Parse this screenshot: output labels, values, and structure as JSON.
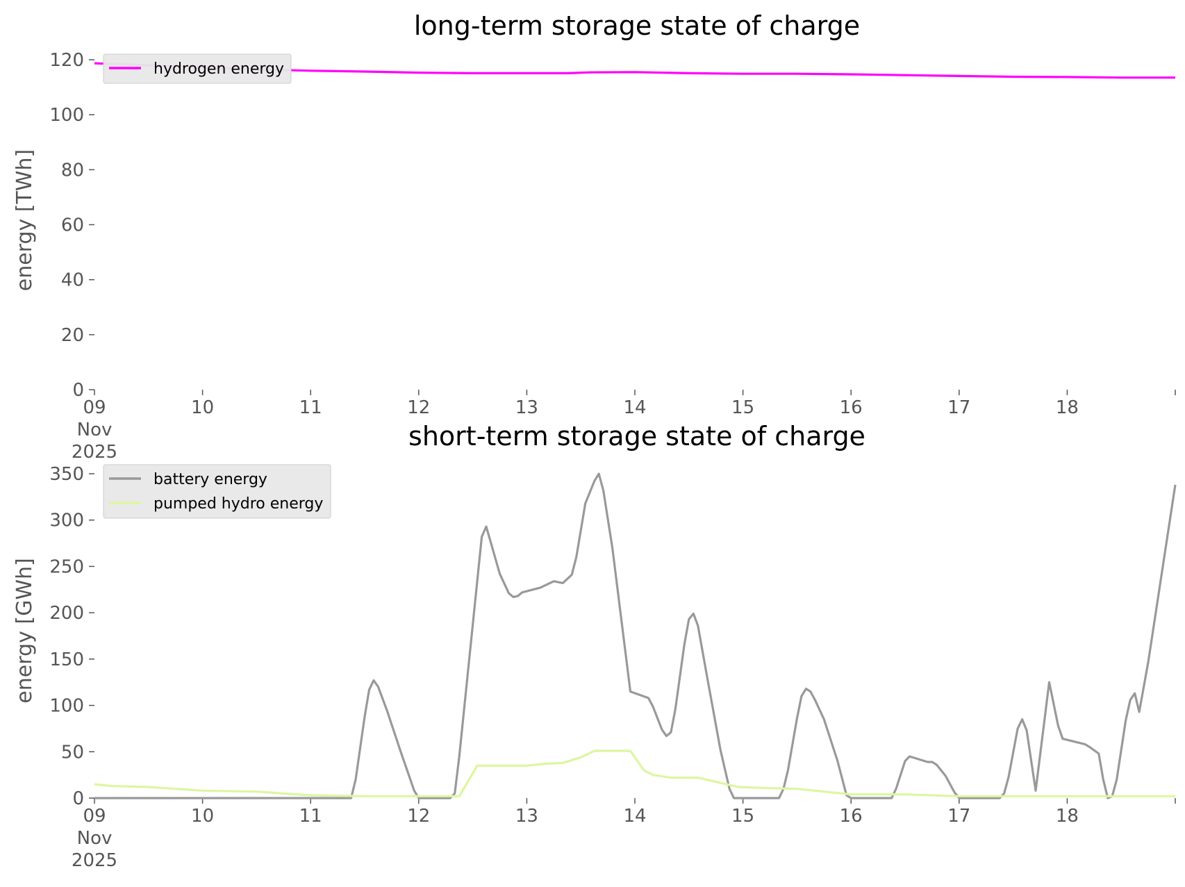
{
  "chart_data": [
    {
      "type": "line",
      "title": "long-term storage state of charge",
      "xlabel": "",
      "ylabel": "energy [TWh]",
      "ylim": [
        0,
        120
      ],
      "yticks": [
        "0",
        "20",
        "40",
        "60",
        "80",
        "100",
        "120"
      ],
      "xlim": [
        "2025-11-09",
        "2025-11-19"
      ],
      "xticks": [
        {
          "date": "2025-11-09",
          "label": [
            "09",
            "Nov",
            "2025"
          ]
        },
        {
          "date": "2025-11-10",
          "label": [
            "10"
          ]
        },
        {
          "date": "2025-11-11",
          "label": [
            "11"
          ]
        },
        {
          "date": "2025-11-12",
          "label": [
            "12"
          ]
        },
        {
          "date": "2025-11-13",
          "label": [
            "13"
          ]
        },
        {
          "date": "2025-11-14",
          "label": [
            "14"
          ]
        },
        {
          "date": "2025-11-15",
          "label": [
            "15"
          ]
        },
        {
          "date": "2025-11-16",
          "label": [
            "16"
          ]
        },
        {
          "date": "2025-11-17",
          "label": [
            "17"
          ]
        },
        {
          "date": "2025-11-18",
          "label": [
            "18"
          ]
        },
        {
          "date": "2025-11-19",
          "label": [
            ""
          ]
        }
      ],
      "grid": false,
      "legend_position": "top-left",
      "series": [
        {
          "name": "hydrogen energy",
          "color": "#ff00ff",
          "points": [
            [
              "2025-11-09 00:00",
              118.7
            ],
            [
              "2025-11-09 12:00",
              118.0
            ],
            [
              "2025-11-10 00:00",
              117.2
            ],
            [
              "2025-11-10 12:00",
              116.5
            ],
            [
              "2025-11-11 00:00",
              116.0
            ],
            [
              "2025-11-11 12:00",
              115.7
            ],
            [
              "2025-11-12 00:00",
              115.3
            ],
            [
              "2025-11-12 12:00",
              115.1
            ],
            [
              "2025-11-13 00:00",
              115.1
            ],
            [
              "2025-11-13 09:00",
              115.1
            ],
            [
              "2025-11-13 14:00",
              115.4
            ],
            [
              "2025-11-14 00:00",
              115.5
            ],
            [
              "2025-11-14 12:00",
              115.1
            ],
            [
              "2025-11-15 00:00",
              114.9
            ],
            [
              "2025-11-15 12:00",
              114.9
            ],
            [
              "2025-11-16 00:00",
              114.7
            ],
            [
              "2025-11-16 12:00",
              114.4
            ],
            [
              "2025-11-17 00:00",
              114.1
            ],
            [
              "2025-11-17 12:00",
              113.8
            ],
            [
              "2025-11-18 00:00",
              113.7
            ],
            [
              "2025-11-18 12:00",
              113.5
            ],
            [
              "2025-11-19 00:00",
              113.5
            ]
          ]
        }
      ]
    },
    {
      "type": "line",
      "title": "short-term storage state of charge",
      "xlabel": "",
      "ylabel": "energy [GWh]",
      "ylim": [
        0,
        350
      ],
      "yticks": [
        "0",
        "50",
        "100",
        "150",
        "200",
        "250",
        "300",
        "350"
      ],
      "xlim": [
        "2025-11-09",
        "2025-11-19"
      ],
      "xticks": [
        {
          "date": "2025-11-09",
          "label": [
            "09",
            "Nov",
            "2025"
          ]
        },
        {
          "date": "2025-11-10",
          "label": [
            "10"
          ]
        },
        {
          "date": "2025-11-11",
          "label": [
            "11"
          ]
        },
        {
          "date": "2025-11-12",
          "label": [
            "12"
          ]
        },
        {
          "date": "2025-11-13",
          "label": [
            "13"
          ]
        },
        {
          "date": "2025-11-14",
          "label": [
            "14"
          ]
        },
        {
          "date": "2025-11-15",
          "label": [
            "15"
          ]
        },
        {
          "date": "2025-11-16",
          "label": [
            "16"
          ]
        },
        {
          "date": "2025-11-17",
          "label": [
            "17"
          ]
        },
        {
          "date": "2025-11-18",
          "label": [
            "18"
          ]
        },
        {
          "date": "2025-11-19",
          "label": [
            ""
          ]
        }
      ],
      "grid": false,
      "legend_position": "top-left",
      "series": [
        {
          "name": "battery energy",
          "color": "#999999",
          "points": [
            [
              "2025-11-09 00:00",
              0
            ],
            [
              "2025-11-11 09:00",
              0
            ],
            [
              "2025-11-11 10:00",
              20
            ],
            [
              "2025-11-11 12:00",
              88
            ],
            [
              "2025-11-11 13:00",
              117
            ],
            [
              "2025-11-11 14:00",
              127
            ],
            [
              "2025-11-11 15:00",
              120
            ],
            [
              "2025-11-11 17:00",
              94
            ],
            [
              "2025-11-11 20:00",
              50
            ],
            [
              "2025-11-11 23:00",
              8
            ],
            [
              "2025-11-12 00:00",
              0
            ],
            [
              "2025-11-12 07:00",
              0
            ],
            [
              "2025-11-12 08:00",
              5
            ],
            [
              "2025-11-12 09:00",
              45
            ],
            [
              "2025-11-12 14:00",
              282
            ],
            [
              "2025-11-12 15:00",
              293
            ],
            [
              "2025-11-12 16:00",
              276
            ],
            [
              "2025-11-12 18:00",
              242
            ],
            [
              "2025-11-12 20:00",
              221
            ],
            [
              "2025-11-12 21:00",
              217
            ],
            [
              "2025-11-12 22:00",
              218
            ],
            [
              "2025-11-12 23:00",
              222
            ],
            [
              "2025-11-13 03:00",
              227
            ],
            [
              "2025-11-13 06:00",
              234
            ],
            [
              "2025-11-13 08:00",
              232
            ],
            [
              "2025-11-13 10:00",
              241
            ],
            [
              "2025-11-13 11:00",
              260
            ],
            [
              "2025-11-13 13:00",
              318
            ],
            [
              "2025-11-13 15:00",
              342
            ],
            [
              "2025-11-13 16:00",
              350
            ],
            [
              "2025-11-13 17:00",
              332
            ],
            [
              "2025-11-13 19:00",
              270
            ],
            [
              "2025-11-13 23:00",
              115
            ],
            [
              "2025-11-14 03:00",
              108
            ],
            [
              "2025-11-14 04:00",
              99
            ],
            [
              "2025-11-14 06:00",
              74
            ],
            [
              "2025-11-14 07:00",
              67
            ],
            [
              "2025-11-14 08:00",
              71
            ],
            [
              "2025-11-14 09:00",
              96
            ],
            [
              "2025-11-14 11:00",
              166
            ],
            [
              "2025-11-14 12:00",
              193
            ],
            [
              "2025-11-14 13:00",
              199
            ],
            [
              "2025-11-14 14:00",
              186
            ],
            [
              "2025-11-14 16:00",
              132
            ],
            [
              "2025-11-14 19:00",
              52
            ],
            [
              "2025-11-14 21:00",
              10
            ],
            [
              "2025-11-14 22:00",
              0
            ],
            [
              "2025-11-15 08:00",
              0
            ],
            [
              "2025-11-15 09:00",
              10
            ],
            [
              "2025-11-15 10:00",
              30
            ],
            [
              "2025-11-15 12:00",
              86
            ],
            [
              "2025-11-15 13:00",
              110
            ],
            [
              "2025-11-15 14:00",
              118
            ],
            [
              "2025-11-15 15:00",
              115
            ],
            [
              "2025-11-15 16:00",
              106
            ],
            [
              "2025-11-15 18:00",
              85
            ],
            [
              "2025-11-15 21:00",
              40
            ],
            [
              "2025-11-15 23:00",
              3
            ],
            [
              "2025-11-16 00:00",
              0
            ],
            [
              "2025-11-16 09:00",
              0
            ],
            [
              "2025-11-16 10:00",
              10
            ],
            [
              "2025-11-16 11:00",
              25
            ],
            [
              "2025-11-16 12:00",
              40
            ],
            [
              "2025-11-16 13:00",
              45
            ],
            [
              "2025-11-16 17:00",
              39
            ],
            [
              "2025-11-16 18:00",
              39
            ],
            [
              "2025-11-16 19:00",
              36
            ],
            [
              "2025-11-16 21:00",
              24
            ],
            [
              "2025-11-16 23:00",
              6
            ],
            [
              "2025-11-17 00:00",
              0
            ],
            [
              "2025-11-17 09:00",
              0
            ],
            [
              "2025-11-17 10:00",
              5
            ],
            [
              "2025-11-17 11:00",
              23
            ],
            [
              "2025-11-17 13:00",
              75
            ],
            [
              "2025-11-17 14:00",
              85
            ],
            [
              "2025-11-17 15:00",
              73
            ],
            [
              "2025-11-17 17:00",
              8
            ],
            [
              "2025-11-17 20:00",
              125
            ],
            [
              "2025-11-17 22:00",
              78
            ],
            [
              "2025-11-17 23:00",
              64
            ],
            [
              "2025-11-18 04:00",
              58
            ],
            [
              "2025-11-18 05:00",
              55
            ],
            [
              "2025-11-18 07:00",
              48
            ],
            [
              "2025-11-18 08:00",
              20
            ],
            [
              "2025-11-18 09:00",
              0
            ],
            [
              "2025-11-18 10:00",
              2
            ],
            [
              "2025-11-18 11:00",
              20
            ],
            [
              "2025-11-18 13:00",
              84
            ],
            [
              "2025-11-18 14:00",
              106
            ],
            [
              "2025-11-18 15:00",
              113
            ],
            [
              "2025-11-18 16:00",
              93
            ],
            [
              "2025-11-18 18:00",
              147
            ],
            [
              "2025-11-19 00:00",
              338
            ]
          ]
        },
        {
          "name": "pumped hydro energy",
          "color": "#dbf7a0",
          "points": [
            [
              "2025-11-09 00:00",
              15
            ],
            [
              "2025-11-09 04:00",
              13
            ],
            [
              "2025-11-09 12:00",
              12
            ],
            [
              "2025-11-09 18:00",
              10
            ],
            [
              "2025-11-10 00:00",
              8
            ],
            [
              "2025-11-10 12:00",
              7
            ],
            [
              "2025-11-11 00:00",
              3
            ],
            [
              "2025-11-11 12:00",
              2
            ],
            [
              "2025-11-12 00:00",
              2
            ],
            [
              "2025-11-12 09:00",
              2
            ],
            [
              "2025-11-12 13:00",
              35
            ],
            [
              "2025-11-13 00:00",
              35
            ],
            [
              "2025-11-13 04:00",
              37
            ],
            [
              "2025-11-13 08:00",
              38
            ],
            [
              "2025-11-13 12:00",
              44
            ],
            [
              "2025-11-13 15:00",
              51
            ],
            [
              "2025-11-13 23:00",
              51
            ],
            [
              "2025-11-14 02:00",
              30
            ],
            [
              "2025-11-14 04:00",
              25
            ],
            [
              "2025-11-14 08:00",
              22
            ],
            [
              "2025-11-14 14:00",
              22
            ],
            [
              "2025-11-14 23:00",
              12
            ],
            [
              "2025-11-15 04:00",
              11
            ],
            [
              "2025-11-15 12:00",
              10
            ],
            [
              "2025-11-16 00:00",
              4
            ],
            [
              "2025-11-16 12:00",
              4
            ],
            [
              "2025-11-17 00:00",
              2
            ],
            [
              "2025-11-19 00:00",
              2
            ]
          ]
        }
      ]
    }
  ]
}
